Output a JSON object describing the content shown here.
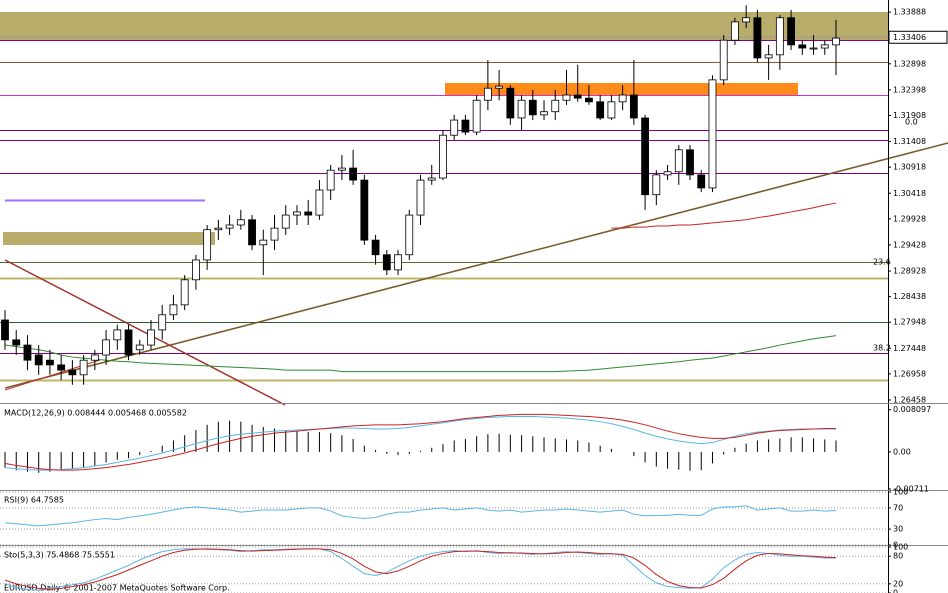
{
  "chart_data": [
    {
      "type": "candlestick",
      "open": [
        1.2799,
        1.2761,
        1.2751,
        1.2732,
        1.2722,
        1.2713,
        1.2703,
        1.2694,
        1.2722,
        1.2732,
        1.2761,
        1.278,
        1.2742,
        1.2751,
        1.278,
        1.2809,
        1.2828,
        1.2876,
        1.2914,
        1.2972,
        1.2975,
        1.2981,
        1.2991,
        1.2943,
        1.2952,
        1.2975,
        1.3,
        1.3006,
        1.3,
        1.3048,
        1.3086,
        1.309,
        1.3067,
        1.2952,
        1.2924,
        1.2895,
        1.2924,
        1.3,
        1.3067,
        1.3071,
        1.3153,
        1.3182,
        1.3159,
        1.322,
        1.3243,
        1.3243,
        1.3186,
        1.322,
        1.3192,
        1.3198,
        1.322,
        1.323,
        1.3224,
        1.3217,
        1.3186,
        1.3217,
        1.323,
        1.3186,
        1.3039,
        1.3077,
        1.3083,
        1.3125,
        1.3077,
        1.3052,
        1.3259,
        1.3335,
        1.337,
        1.3378,
        1.3301,
        1.3307,
        1.3378,
        1.3326,
        1.332,
        1.332,
        1.3326
      ],
      "high": [
        1.2818,
        1.278,
        1.277,
        1.2751,
        1.2742,
        1.2732,
        1.2722,
        1.2732,
        1.2742,
        1.278,
        1.279,
        1.279,
        1.2761,
        1.2799,
        1.2828,
        1.2847,
        1.2885,
        1.2924,
        1.2981,
        1.2991,
        1.3,
        1.301,
        1.3,
        1.2972,
        1.3,
        1.3019,
        1.3019,
        1.3029,
        1.3067,
        1.3096,
        1.3115,
        1.3125,
        1.3077,
        1.2962,
        1.2933,
        1.2933,
        1.301,
        1.3077,
        1.3096,
        1.3163,
        1.3192,
        1.3192,
        1.323,
        1.3297,
        1.3278,
        1.3249,
        1.323,
        1.324,
        1.322,
        1.324,
        1.3278,
        1.3288,
        1.3249,
        1.323,
        1.323,
        1.3249,
        1.3297,
        1.3192,
        1.3086,
        1.3096,
        1.3134,
        1.3134,
        1.3086,
        1.3268,
        1.3345,
        1.3378,
        1.3402,
        1.3393,
        1.3326,
        1.3383,
        1.3393,
        1.3335,
        1.3345,
        1.3335,
        1.3374
      ],
      "low": [
        1.2742,
        1.2732,
        1.2703,
        1.2694,
        1.2694,
        1.2684,
        1.2675,
        1.2675,
        1.2703,
        1.2713,
        1.2742,
        1.2722,
        1.2732,
        1.2742,
        1.2761,
        1.2799,
        1.2818,
        1.2857,
        1.2895,
        1.2952,
        1.2962,
        1.2972,
        1.2933,
        1.2885,
        1.2933,
        1.2962,
        1.2981,
        1.2981,
        1.2991,
        1.3029,
        1.3067,
        1.3058,
        1.2943,
        1.2905,
        1.2885,
        1.2885,
        1.2914,
        1.2981,
        1.3058,
        1.3067,
        1.3144,
        1.3153,
        1.3153,
        1.3201,
        1.322,
        1.3173,
        1.3163,
        1.3182,
        1.3182,
        1.3182,
        1.3211,
        1.3217,
        1.3211,
        1.3182,
        1.3182,
        1.3201,
        1.3173,
        1.301,
        1.3019,
        1.3067,
        1.3058,
        1.3067,
        1.3044,
        1.3044,
        1.3249,
        1.3326,
        1.3358,
        1.3293,
        1.3259,
        1.3278,
        1.3316,
        1.3307,
        1.3307,
        1.3307,
        1.3268
      ],
      "close": [
        1.2761,
        1.2751,
        1.2722,
        1.2713,
        1.2713,
        1.2703,
        1.2694,
        1.2722,
        1.2732,
        1.2761,
        1.278,
        1.2732,
        1.2751,
        1.278,
        1.2809,
        1.2828,
        1.2876,
        1.2914,
        1.2972,
        1.2975,
        1.2981,
        1.2991,
        1.2943,
        1.2952,
        1.2975,
        1.3,
        1.3006,
        1.3,
        1.3048,
        1.3086,
        1.309,
        1.3067,
        1.2952,
        1.2924,
        1.2895,
        1.2924,
        1.3,
        1.3067,
        1.3071,
        1.3153,
        1.3182,
        1.3159,
        1.322,
        1.3243,
        1.3247,
        1.3186,
        1.322,
        1.3192,
        1.3198,
        1.322,
        1.323,
        1.3224,
        1.3217,
        1.3186,
        1.3217,
        1.323,
        1.3186,
        1.3039,
        1.3077,
        1.3083,
        1.3125,
        1.3077,
        1.3052,
        1.3259,
        1.3335,
        1.337,
        1.3378,
        1.3301,
        1.3307,
        1.3378,
        1.3326,
        1.332,
        1.332,
        1.3326,
        1.3339
      ],
      "series": [
        {
          "color": "#2e8b2e",
          "values": [
            1.2751,
            1.2748,
            1.2745,
            1.2742,
            1.2738,
            1.2732,
            1.2728,
            1.2726,
            1.2724,
            1.2722,
            1.272,
            1.2719,
            1.2717,
            1.2716,
            1.2715,
            1.2714,
            1.2713,
            1.2712,
            1.2711,
            1.271,
            1.2709,
            1.2708,
            1.2707,
            1.2706,
            1.2705,
            1.2703,
            1.2703,
            1.2703,
            1.2703,
            1.2703,
            1.27,
            1.27,
            1.27,
            1.27,
            1.27,
            1.27,
            1.27,
            1.27,
            1.27,
            1.27,
            1.27,
            1.27,
            1.27,
            1.27,
            1.27,
            1.27,
            1.27,
            1.27,
            1.27,
            1.27,
            1.2701,
            1.2702,
            1.2703,
            1.2705,
            1.2707,
            1.2709,
            1.2711,
            1.2713,
            1.2715,
            1.2717,
            1.2719,
            1.2722,
            1.2724,
            1.2726,
            1.273,
            1.2734,
            1.2738,
            1.2742,
            1.2746,
            1.2751,
            1.2755,
            1.2759,
            1.2763,
            1.2766,
            1.2769
          ]
        },
        {
          "color": "#cc2222",
          "values": [
            null,
            null,
            null,
            null,
            null,
            null,
            null,
            null,
            null,
            null,
            null,
            null,
            null,
            null,
            null,
            null,
            null,
            null,
            null,
            null,
            null,
            null,
            null,
            null,
            null,
            null,
            null,
            null,
            null,
            null,
            null,
            null,
            null,
            null,
            null,
            null,
            null,
            null,
            null,
            null,
            null,
            null,
            null,
            null,
            null,
            null,
            null,
            null,
            null,
            null,
            null,
            null,
            null,
            null,
            1.2975,
            1.2975,
            1.2977,
            1.2977,
            1.2979,
            1.2979,
            1.2981,
            1.2981,
            1.2983,
            1.2985,
            1.2987,
            1.2989,
            1.2991,
            1.2995,
            1.2998,
            1.3002,
            1.3006,
            1.301,
            1.3014,
            1.3019,
            1.3023
          ]
        }
      ],
      "ylim": [
        1.264,
        1.3412
      ],
      "yticks": [
        1.26458,
        1.26958,
        1.27448,
        1.27948,
        1.28438,
        1.28928,
        1.29428,
        1.29928,
        1.30418,
        1.30918,
        1.31408,
        1.31908,
        1.32398,
        1.32898,
        1.33888
      ],
      "last_price": 1.33406,
      "annotations": [
        "0.0",
        "23.6",
        "38.2"
      ]
    },
    {
      "type": "indicator",
      "title": "MACD(12,26,9) 0.008444 0.005468 0.005582",
      "series": [
        {
          "style": "histogram",
          "color": "#000000",
          "values": [
            -0.003,
            -0.0035,
            -0.0038,
            -0.004,
            -0.0038,
            -0.0035,
            -0.0033,
            -0.003,
            -0.0026,
            -0.002,
            -0.0015,
            -0.0012,
            -0.0006,
            0.0002,
            0.0012,
            0.0022,
            0.0032,
            0.0042,
            0.0052,
            0.0058,
            0.006,
            0.0058,
            0.0052,
            0.0048,
            0.0045,
            0.0042,
            0.004,
            0.0038,
            0.0038,
            0.0036,
            0.0032,
            0.0025,
            0.0012,
            0.0004,
            -0.0004,
            -0.0006,
            -0.0004,
            0.0002,
            0.0008,
            0.0015,
            0.0022,
            0.0025,
            0.003,
            0.0034,
            0.0035,
            0.0033,
            0.0032,
            0.003,
            0.0028,
            0.0026,
            0.0024,
            0.0022,
            0.0018,
            0.0012,
            0.0006,
            0.0,
            -0.0008,
            -0.002,
            -0.0028,
            -0.0032,
            -0.0034,
            -0.0036,
            -0.0035,
            -0.0022,
            -0.0005,
            0.0008,
            0.0016,
            0.0022,
            0.0024,
            0.0026,
            0.0028,
            0.0028,
            0.0026,
            0.0024,
            0.0022
          ]
        },
        {
          "style": "line",
          "color": "#5bb5e6",
          "values": [
            -0.003,
            -0.0032,
            -0.0034,
            -0.0035,
            -0.0035,
            -0.0034,
            -0.0032,
            -0.003,
            -0.0027,
            -0.0024,
            -0.002,
            -0.0016,
            -0.0012,
            -0.0007,
            -0.0002,
            0.0004,
            0.001,
            0.0016,
            0.0022,
            0.0027,
            0.0031,
            0.0034,
            0.0036,
            0.0038,
            0.004,
            0.0041,
            0.0042,
            0.0043,
            0.0044,
            0.0045,
            0.0046,
            0.0046,
            0.0045,
            0.0044,
            0.0044,
            0.0045,
            0.0047,
            0.005,
            0.0053,
            0.0056,
            0.0059,
            0.0062,
            0.0064,
            0.0066,
            0.0067,
            0.0068,
            0.0068,
            0.0068,
            0.0067,
            0.0066,
            0.0065,
            0.0063,
            0.0061,
            0.0058,
            0.0054,
            0.0049,
            0.0043,
            0.0036,
            0.003,
            0.0025,
            0.0021,
            0.0018,
            0.0016,
            0.0018,
            0.0024,
            0.003,
            0.0035,
            0.0038,
            0.004,
            0.0042,
            0.0043,
            0.0044,
            0.0044,
            0.0044,
            0.0044
          ]
        },
        {
          "style": "line",
          "color": "#cc2222",
          "values": [
            -0.0022,
            -0.0026,
            -0.0029,
            -0.0032,
            -0.0034,
            -0.0035,
            -0.0035,
            -0.0034,
            -0.0032,
            -0.003,
            -0.0027,
            -0.0024,
            -0.002,
            -0.0016,
            -0.0012,
            -0.0007,
            -0.0002,
            0.0004,
            0.001,
            0.0016,
            0.0021,
            0.0026,
            0.003,
            0.0033,
            0.0036,
            0.0038,
            0.004,
            0.0042,
            0.0044,
            0.0046,
            0.0048,
            0.005,
            0.0051,
            0.0052,
            0.0052,
            0.0052,
            0.0053,
            0.0054,
            0.0056,
            0.0058,
            0.0061,
            0.0064,
            0.0066,
            0.0068,
            0.007,
            0.0071,
            0.0072,
            0.0072,
            0.0072,
            0.0071,
            0.007,
            0.0069,
            0.0068,
            0.0066,
            0.0064,
            0.0061,
            0.0057,
            0.0052,
            0.0046,
            0.004,
            0.0035,
            0.0031,
            0.0028,
            0.0026,
            0.0026,
            0.0028,
            0.0032,
            0.0036,
            0.0039,
            0.0041,
            0.0042,
            0.0043,
            0.0044,
            0.0045,
            0.0045
          ]
        }
      ],
      "ylim": [
        -0.0073,
        0.009
      ],
      "yticks": [
        0.008097,
        {
          "value": 0,
          "label": "0.00"
        },
        -0.00711
      ]
    },
    {
      "type": "indicator",
      "title": "RSI(9) 64.7585",
      "series": [
        {
          "style": "line",
          "color": "#5bb5e6",
          "values": [
            42,
            40,
            38,
            36,
            38,
            40,
            42,
            45,
            48,
            50,
            48,
            52,
            55,
            58,
            62,
            66,
            70,
            72,
            70,
            68,
            66,
            62,
            64,
            66,
            66,
            66,
            68,
            70,
            70,
            64,
            55,
            52,
            50,
            52,
            58,
            62,
            62,
            66,
            68,
            70,
            66,
            68,
            70,
            66,
            64,
            66,
            62,
            64,
            66,
            66,
            68,
            66,
            64,
            62,
            64,
            66,
            58,
            55,
            56,
            56,
            58,
            56,
            56,
            68,
            72,
            72,
            74,
            66,
            68,
            70,
            64,
            64,
            66,
            64,
            65
          ]
        }
      ],
      "ylim": [
        0,
        100
      ],
      "yticks": [
        100,
        70,
        30,
        0
      ],
      "grid": true
    },
    {
      "type": "indicator",
      "title": "Sto(5,3,3) 75.4868 75.5551",
      "series": [
        {
          "style": "line",
          "color": "#5bb5e6",
          "values": [
            20,
            12,
            8,
            6,
            10,
            14,
            18,
            22,
            30,
            40,
            50,
            60,
            72,
            82,
            90,
            94,
            96,
            96,
            95,
            94,
            93,
            90,
            92,
            94,
            94,
            95,
            96,
            96,
            96,
            90,
            75,
            58,
            42,
            38,
            45,
            58,
            70,
            80,
            86,
            90,
            92,
            90,
            92,
            88,
            86,
            88,
            86,
            84,
            86,
            88,
            90,
            88,
            86,
            84,
            86,
            82,
            60,
            38,
            22,
            14,
            12,
            10,
            12,
            30,
            55,
            72,
            84,
            88,
            86,
            82,
            80,
            80,
            78,
            76,
            76
          ]
        },
        {
          "style": "line",
          "color": "#cc2222",
          "values": [
            28,
            20,
            14,
            10,
            8,
            10,
            14,
            18,
            24,
            32,
            40,
            50,
            60,
            70,
            80,
            88,
            93,
            95,
            96,
            95,
            94,
            92,
            91,
            92,
            93,
            94,
            95,
            96,
            96,
            94,
            86,
            74,
            58,
            46,
            42,
            48,
            58,
            70,
            80,
            86,
            90,
            91,
            91,
            90,
            88,
            87,
            87,
            86,
            85,
            86,
            88,
            89,
            88,
            86,
            85,
            84,
            76,
            60,
            40,
            25,
            16,
            12,
            11,
            18,
            32,
            52,
            70,
            82,
            86,
            85,
            83,
            81,
            80,
            78,
            77
          ]
        }
      ],
      "ylim": [
        0,
        100
      ],
      "yticks": [
        100,
        80,
        20,
        0
      ],
      "grid": true
    }
  ],
  "footer": "EURUSD,Daily © 2001-2007 MetaQuotes Software Corp."
}
